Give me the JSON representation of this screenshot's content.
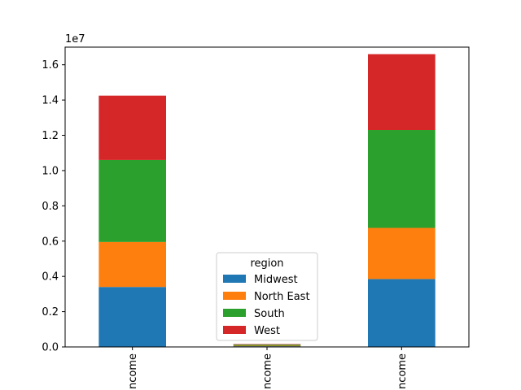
{
  "chart_data": {
    "type": "bar",
    "stacked": true,
    "categories": [
      "income",
      "income",
      "income"
    ],
    "category_labels_visible": [
      "ncome",
      "ncome",
      "ncome"
    ],
    "series": [
      {
        "name": "Midwest",
        "color": "#1f77b4",
        "values": [
          3400000,
          40000,
          3850000
        ]
      },
      {
        "name": "North East",
        "color": "#ff7f0e",
        "values": [
          2550000,
          30000,
          2900000
        ]
      },
      {
        "name": "South",
        "color": "#2ca02c",
        "values": [
          4650000,
          60000,
          5550000
        ]
      },
      {
        "name": "West",
        "color": "#d62728",
        "values": [
          3650000,
          30000,
          4300000
        ]
      }
    ],
    "ylim": [
      0,
      17000000
    ],
    "yticks": [
      0,
      2000000,
      4000000,
      6000000,
      8000000,
      10000000,
      12000000,
      14000000,
      16000000
    ],
    "ytick_labels": [
      "0.0",
      "0.2",
      "0.4",
      "0.6",
      "0.8",
      "1.0",
      "1.2",
      "1.4",
      "1.6"
    ],
    "offset_text": "1e7",
    "xlabel": "",
    "ylabel": "",
    "title": "",
    "grid": false,
    "legend": {
      "title": "region",
      "placement": "lower center"
    }
  }
}
